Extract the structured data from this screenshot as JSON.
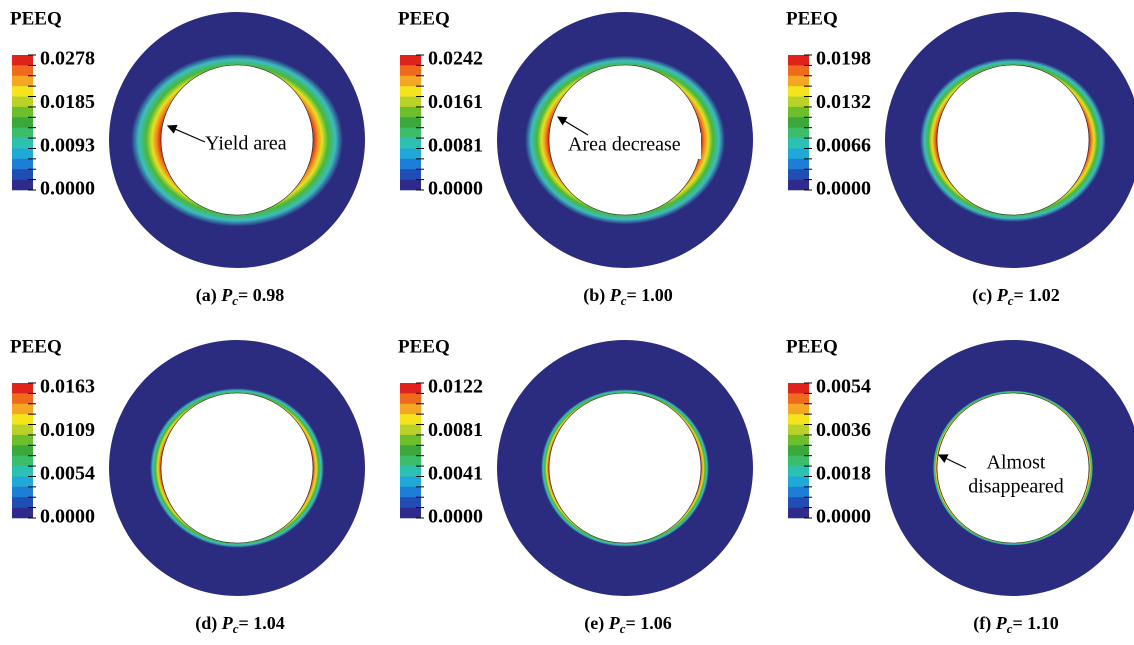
{
  "panels": [
    {
      "title": "PEEQ",
      "legend": [
        "0.0278",
        "0.0185",
        "0.0093",
        "0.0000"
      ],
      "caption": {
        "label": "(a)",
        "symbol": "P",
        "subscript": "c",
        "value": "= 0.98"
      },
      "annotation": [
        "Yield area"
      ]
    },
    {
      "title": "PEEQ",
      "legend": [
        "0.0242",
        "0.0161",
        "0.0081",
        "0.0000"
      ],
      "caption": {
        "label": "(b)",
        "symbol": "P",
        "subscript": "c",
        "value": "= 1.00"
      },
      "annotation": [
        "Area decrease"
      ]
    },
    {
      "title": "PEEQ",
      "legend": [
        "0.0198",
        "0.0132",
        "0.0066",
        "0.0000"
      ],
      "caption": {
        "label": "(c)",
        "symbol": "P",
        "subscript": "c",
        "value": "= 1.02"
      }
    },
    {
      "title": "PEEQ",
      "legend": [
        "0.0163",
        "0.0109",
        "0.0054",
        "0.0000"
      ],
      "caption": {
        "label": "(d)",
        "symbol": "P",
        "subscript": "c",
        "value": "= 1.04"
      }
    },
    {
      "title": "PEEQ",
      "legend": [
        "0.0122",
        "0.0081",
        "0.0041",
        "0.0000"
      ],
      "caption": {
        "label": "(e)",
        "symbol": "P",
        "subscript": "c",
        "value": "= 1.06"
      }
    },
    {
      "title": "PEEQ",
      "legend": [
        "0.0054",
        "0.0036",
        "0.0018",
        "0.0000"
      ],
      "caption": {
        "label": "(f)",
        "symbol": "P",
        "subscript": "c",
        "value": "= 1.10"
      },
      "annotation": [
        "Almost",
        "disappeared"
      ]
    }
  ]
}
